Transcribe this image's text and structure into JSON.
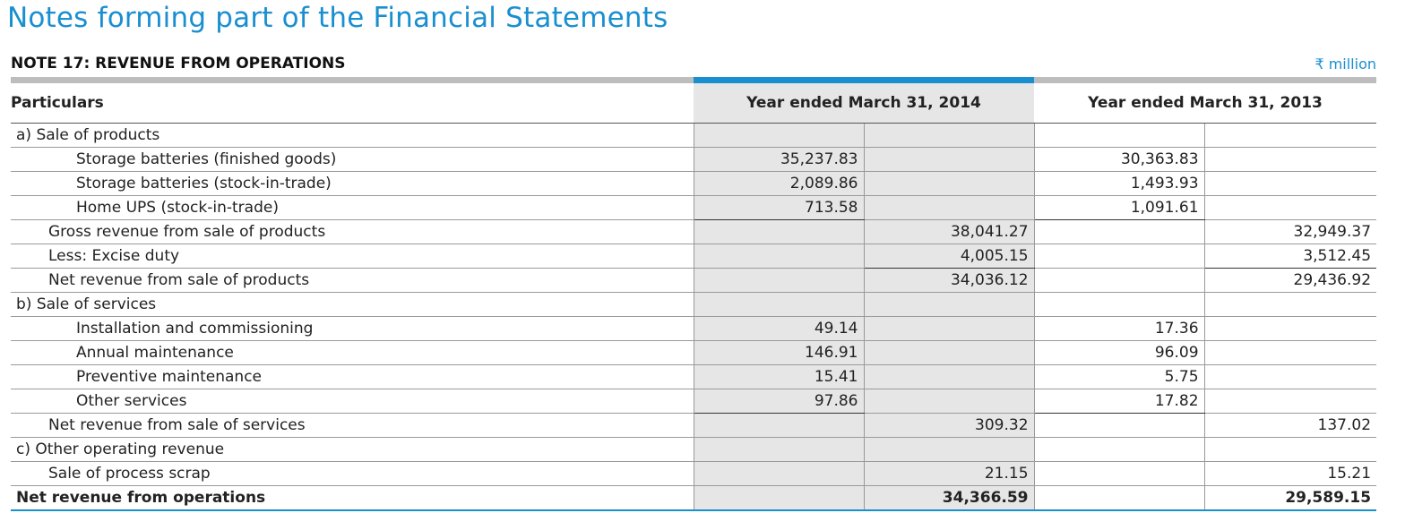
{
  "page_title": "Notes forming part of the Financial Statements",
  "note_title": "NOTE 17: REVENUE FROM OPERATIONS",
  "unit": "₹ million",
  "headers": {
    "particulars": "Particulars",
    "y2014": "Year ended March 31, 2014",
    "y2013": "Year ended March 31, 2013"
  },
  "rows": [
    {
      "label": "a)  Sale of products",
      "a14": "",
      "b14": "",
      "a13": "",
      "b13": ""
    },
    {
      "label": "Storage batteries (finished goods)",
      "a14": "35,237.83",
      "b14": "",
      "a13": "30,363.83",
      "b13": ""
    },
    {
      "label": "Storage batteries (stock-in-trade)",
      "a14": "2,089.86",
      "b14": "",
      "a13": "1,493.93",
      "b13": ""
    },
    {
      "label": "Home UPS (stock-in-trade)",
      "a14": "713.58",
      "b14": "",
      "a13": "1,091.61",
      "b13": ""
    },
    {
      "label": "Gross revenue from sale of products",
      "a14": "",
      "b14": "38,041.27",
      "a13": "",
      "b13": "32,949.37"
    },
    {
      "label": "Less: Excise duty",
      "a14": "",
      "b14": "4,005.15",
      "a13": "",
      "b13": "3,512.45"
    },
    {
      "label": "Net revenue from sale of products",
      "a14": "",
      "b14": "34,036.12",
      "a13": "",
      "b13": "29,436.92"
    },
    {
      "label": "b)  Sale of services",
      "a14": "",
      "b14": "",
      "a13": "",
      "b13": ""
    },
    {
      "label": "Installation and commissioning",
      "a14": "49.14",
      "b14": "",
      "a13": "17.36",
      "b13": ""
    },
    {
      "label": "Annual maintenance",
      "a14": "146.91",
      "b14": "",
      "a13": "96.09",
      "b13": ""
    },
    {
      "label": "Preventive maintenance",
      "a14": "15.41",
      "b14": "",
      "a13": "5.75",
      "b13": ""
    },
    {
      "label": "Other services",
      "a14": "97.86",
      "b14": "",
      "a13": "17.82",
      "b13": ""
    },
    {
      "label": "Net revenue from sale of services",
      "a14": "",
      "b14": "309.32",
      "a13": "",
      "b13": "137.02"
    },
    {
      "label": "c)  Other operating revenue",
      "a14": "",
      "b14": "",
      "a13": "",
      "b13": ""
    },
    {
      "label": "Sale of process scrap",
      "a14": "",
      "b14": "21.15",
      "a13": "",
      "b13": "15.21"
    },
    {
      "label": "Net revenue from operations",
      "a14": "",
      "b14": "34,366.59",
      "a13": "",
      "b13": "29,589.15"
    }
  ]
}
